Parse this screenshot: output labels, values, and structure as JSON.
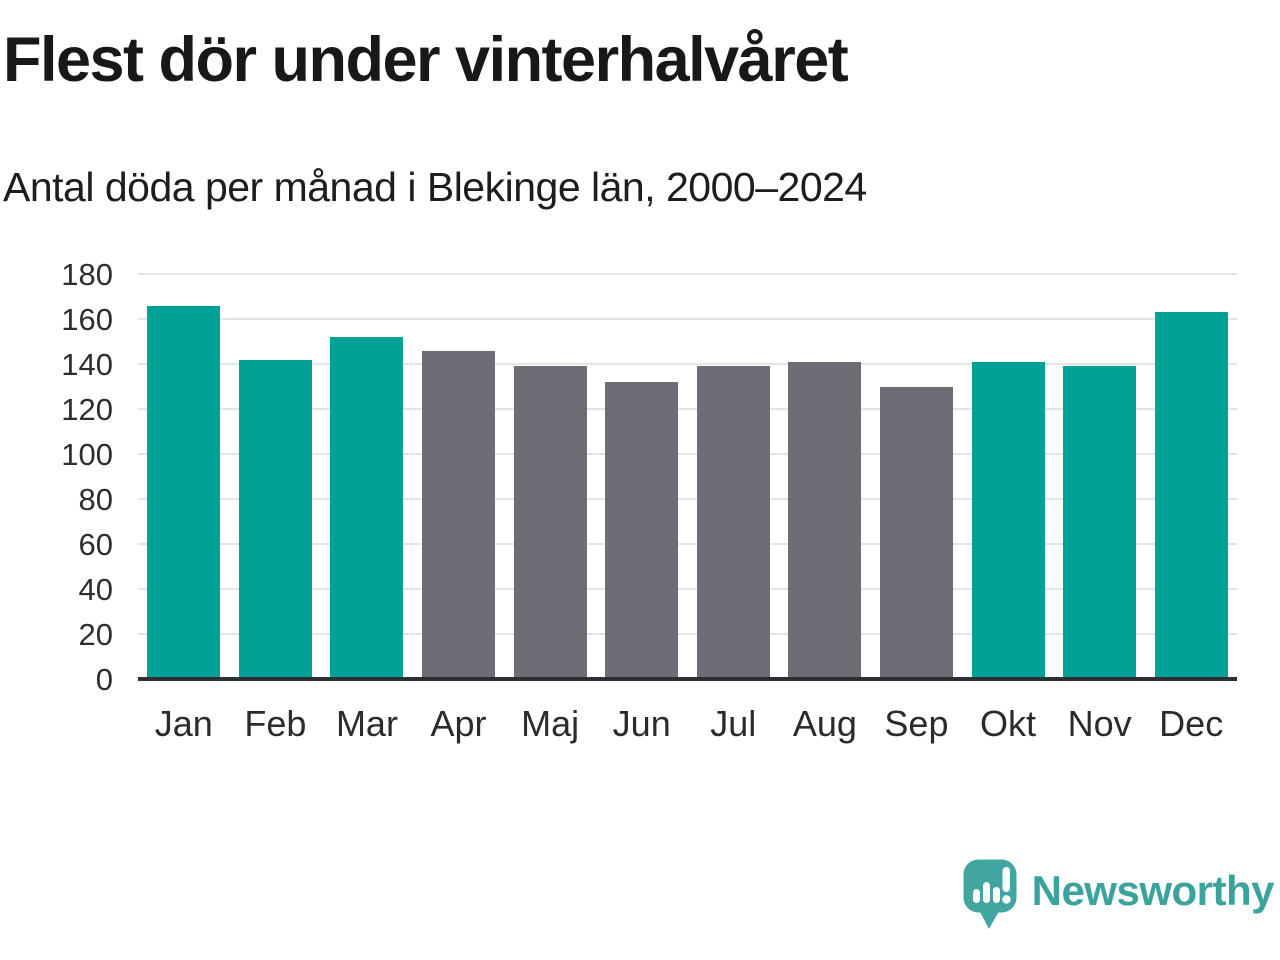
{
  "header": {
    "title": "Flest dör under vinterhalvåret",
    "subtitle": "Antal döda per månad i Blekinge län, 2000–2024"
  },
  "chart_data": {
    "type": "bar",
    "title": "Flest dör under vinterhalvåret",
    "subtitle": "Antal döda per månad i Blekinge län, 2000–2024",
    "categories": [
      "Jan",
      "Feb",
      "Mar",
      "Apr",
      "Maj",
      "Jun",
      "Jul",
      "Aug",
      "Sep",
      "Okt",
      "Nov",
      "Dec"
    ],
    "values": [
      166,
      142,
      152,
      146,
      139,
      132,
      139,
      141,
      130,
      141,
      139,
      163
    ],
    "bar_groups": [
      "winter",
      "winter",
      "winter",
      "summer",
      "summer",
      "summer",
      "summer",
      "summer",
      "summer",
      "winter",
      "winter",
      "winter"
    ],
    "palette": {
      "winter": "#00a196",
      "summer": "#6e6c75"
    },
    "yticks": [
      0,
      20,
      40,
      60,
      80,
      100,
      120,
      140,
      160,
      180
    ],
    "ylim": [
      0,
      180
    ],
    "xlabel": "",
    "ylabel": "",
    "grid": true,
    "legend": false
  },
  "branding": {
    "name": "Newsworthy",
    "logo_icon": "speech-bubble-bar-chart-icon",
    "brand_color": "#3aa39c"
  }
}
